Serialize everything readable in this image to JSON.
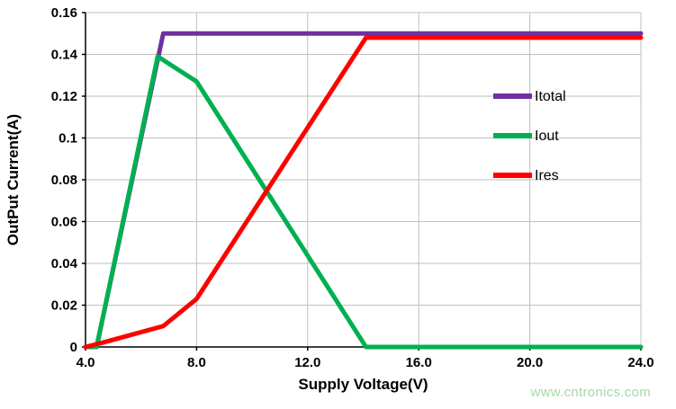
{
  "chart_data": {
    "type": "line",
    "title": "",
    "xlabel": "Supply Voltage(V)",
    "ylabel": "OutPut Current(A)",
    "xlim": [
      4.0,
      24.0
    ],
    "ylim": [
      0,
      0.16
    ],
    "xticks": {
      "values": [
        4,
        8,
        12,
        16,
        20,
        24
      ],
      "labels": [
        "4.0",
        "8.0",
        "12.0",
        "16.0",
        "20.0",
        "24.0"
      ]
    },
    "yticks": {
      "values": [
        0,
        0.02,
        0.04,
        0.06,
        0.08,
        0.1,
        0.12,
        0.14,
        0.16
      ],
      "labels": [
        "0",
        "0.02",
        "0.04",
        "0.06",
        "0.08",
        "0.1",
        "0.12",
        "0.14",
        "0.16"
      ]
    },
    "grid": true,
    "grid_color": "#BFBFBF",
    "axis_color": "#000000",
    "legend_position": "inside-right",
    "series": [
      {
        "name": "Itotal",
        "color": "#7030A0",
        "points": [
          [
            4.0,
            0
          ],
          [
            4.4,
            0
          ],
          [
            6.8,
            0.15
          ],
          [
            24.0,
            0.15
          ]
        ]
      },
      {
        "name": "Iout",
        "color": "#00B050",
        "points": [
          [
            4.0,
            0
          ],
          [
            4.4,
            0
          ],
          [
            6.6,
            0.139
          ],
          [
            8.0,
            0.127
          ],
          [
            14.1,
            0
          ],
          [
            24.0,
            0
          ]
        ]
      },
      {
        "name": "Ires",
        "color": "#FF0000",
        "points": [
          [
            4.0,
            0
          ],
          [
            4.6,
            0.002
          ],
          [
            6.8,
            0.01
          ],
          [
            8.0,
            0.023
          ],
          [
            14.1,
            0.148
          ],
          [
            24.0,
            0.148
          ]
        ]
      }
    ],
    "watermark": "www.cntronics.com",
    "watermark_color": "#A4D8A6"
  }
}
